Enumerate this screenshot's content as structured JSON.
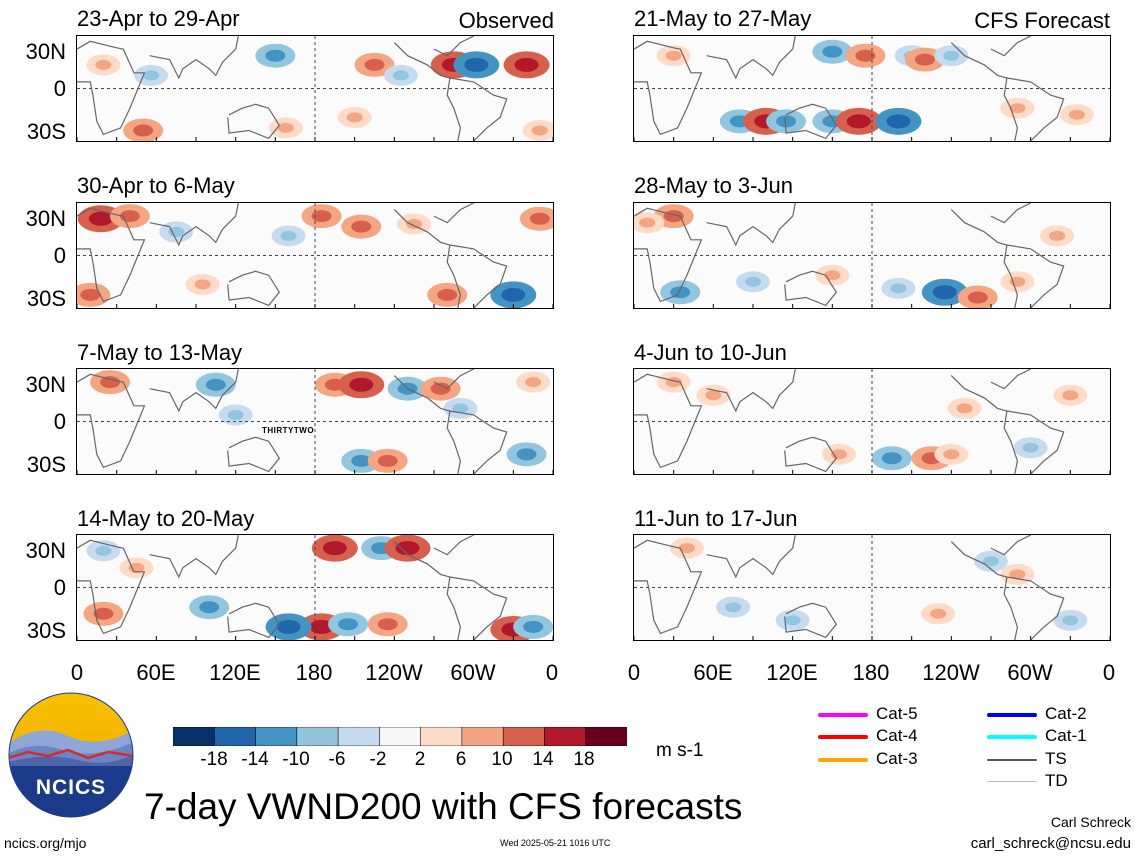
{
  "figure": {
    "title": "7-day VWND200 with CFS forecasts",
    "units": "m s-1",
    "author": "Carl Schreck",
    "email": "carl_schreck@ncsu.edu",
    "url": "ncics.org/mjo",
    "timestamp": "Wed 2025-05-21 1016 UTC",
    "logo_text": "NCICS"
  },
  "columns": {
    "observed_label": "Observed",
    "forecast_label": "CFS Forecast"
  },
  "axes": {
    "y_ticks": [
      "30N",
      "0",
      "30S"
    ],
    "x_ticks": [
      "0",
      "60E",
      "120E",
      "180",
      "120W",
      "60W",
      "0"
    ]
  },
  "storm_label": "THIRTYTWO",
  "colorbar": {
    "ticks": [
      "-18",
      "-14",
      "-10",
      "-6",
      "-2",
      "2",
      "6",
      "10",
      "14",
      "18"
    ],
    "colors": [
      "#08306b",
      "#2166ac",
      "#4393c3",
      "#92c5de",
      "#c6dbef",
      "#f7f7f7",
      "#fddbc7",
      "#f4a582",
      "#d6604d",
      "#b2182b",
      "#67001f"
    ]
  },
  "legend": [
    {
      "label": "Cat-5",
      "color": "#ff00ff"
    },
    {
      "label": "Cat-4",
      "color": "#ff0000"
    },
    {
      "label": "Cat-3",
      "color": "#ffa500"
    },
    {
      "label": "Cat-2",
      "color": "#0000ff"
    },
    {
      "label": "Cat-1",
      "color": "#00ffff"
    },
    {
      "label": "TS",
      "color": "#555555"
    },
    {
      "label": "TD",
      "color": "#bbbbbb"
    }
  ],
  "chart_data": [
    {
      "type": "heatmap",
      "title": "23-Apr to 29-Apr",
      "xlim": [
        0,
        360
      ],
      "ylim": [
        -40,
        40
      ],
      "blobs": [
        [
          20,
          18,
          1
        ],
        [
          56,
          10,
          -1
        ],
        [
          150,
          25,
          -2
        ],
        [
          158,
          -30,
          1
        ],
        [
          225,
          18,
          2
        ],
        [
          285,
          18,
          3
        ],
        [
          302,
          18,
          -3
        ],
        [
          340,
          18,
          3
        ],
        [
          50,
          -32,
          2
        ],
        [
          210,
          -22,
          1
        ],
        [
          245,
          10,
          -1
        ],
        [
          350,
          -32,
          1
        ]
      ]
    },
    {
      "type": "heatmap",
      "title": "30-Apr to 6-May",
      "xlim": [
        0,
        360
      ],
      "ylim": [
        -40,
        40
      ],
      "blobs": [
        [
          18,
          28,
          3
        ],
        [
          40,
          30,
          2
        ],
        [
          75,
          18,
          -1
        ],
        [
          160,
          15,
          -1
        ],
        [
          185,
          30,
          2
        ],
        [
          215,
          22,
          2
        ],
        [
          255,
          24,
          1
        ],
        [
          280,
          -30,
          2
        ],
        [
          330,
          -30,
          -3
        ],
        [
          350,
          28,
          2
        ],
        [
          10,
          -30,
          2
        ],
        [
          95,
          -22,
          1
        ]
      ]
    },
    {
      "type": "heatmap",
      "title": "7-May to 13-May",
      "xlim": [
        0,
        360
      ],
      "ylim": [
        -40,
        40
      ],
      "blobs": [
        [
          25,
          30,
          2
        ],
        [
          105,
          28,
          -2
        ],
        [
          195,
          28,
          2
        ],
        [
          215,
          28,
          3
        ],
        [
          250,
          25,
          -2
        ],
        [
          275,
          25,
          2
        ],
        [
          215,
          -30,
          -2
        ],
        [
          235,
          -30,
          2
        ],
        [
          340,
          -25,
          -2
        ],
        [
          345,
          30,
          1
        ],
        [
          120,
          5,
          -1
        ],
        [
          290,
          10,
          -1
        ]
      ]
    },
    {
      "type": "heatmap",
      "title": "14-May to 20-May",
      "xlim": [
        0,
        360
      ],
      "ylim": [
        -40,
        40
      ],
      "blobs": [
        [
          20,
          28,
          -1
        ],
        [
          195,
          30,
          3
        ],
        [
          230,
          30,
          -2
        ],
        [
          250,
          30,
          3
        ],
        [
          185,
          -30,
          3
        ],
        [
          160,
          -30,
          -3
        ],
        [
          205,
          -28,
          -2
        ],
        [
          235,
          -28,
          2
        ],
        [
          330,
          -32,
          3
        ],
        [
          345,
          -30,
          -2
        ],
        [
          20,
          -20,
          2
        ],
        [
          100,
          -15,
          -2
        ],
        [
          45,
          15,
          1
        ]
      ]
    },
    {
      "type": "heatmap",
      "title": "21-May to 27-May",
      "xlim": [
        0,
        360
      ],
      "ylim": [
        -40,
        40
      ],
      "blobs": [
        [
          30,
          25,
          1
        ],
        [
          150,
          28,
          -2
        ],
        [
          175,
          25,
          2
        ],
        [
          210,
          25,
          -1
        ],
        [
          220,
          22,
          2
        ],
        [
          240,
          25,
          -1
        ],
        [
          80,
          -25,
          -2
        ],
        [
          100,
          -25,
          3
        ],
        [
          115,
          -25,
          -2
        ],
        [
          150,
          -25,
          -2
        ],
        [
          170,
          -25,
          3
        ],
        [
          200,
          -25,
          -3
        ],
        [
          290,
          -15,
          1
        ],
        [
          335,
          -20,
          1
        ]
      ]
    },
    {
      "type": "heatmap",
      "title": "28-May to 3-Jun",
      "xlim": [
        0,
        360
      ],
      "ylim": [
        -40,
        40
      ],
      "blobs": [
        [
          30,
          30,
          2
        ],
        [
          10,
          25,
          1
        ],
        [
          35,
          -28,
          -2
        ],
        [
          90,
          -20,
          -1
        ],
        [
          150,
          -15,
          1
        ],
        [
          235,
          -28,
          -3
        ],
        [
          260,
          -32,
          2
        ],
        [
          290,
          -20,
          1
        ],
        [
          200,
          -25,
          -1
        ],
        [
          320,
          15,
          1
        ]
      ]
    },
    {
      "type": "heatmap",
      "title": "4-Jun to 10-Jun",
      "xlim": [
        0,
        360
      ],
      "ylim": [
        -40,
        40
      ],
      "blobs": [
        [
          30,
          30,
          1
        ],
        [
          155,
          -25,
          1
        ],
        [
          195,
          -28,
          -2
        ],
        [
          225,
          -28,
          2
        ],
        [
          240,
          -25,
          1
        ],
        [
          250,
          10,
          1
        ],
        [
          300,
          -20,
          -1
        ],
        [
          330,
          20,
          1
        ],
        [
          60,
          20,
          1
        ]
      ]
    },
    {
      "type": "heatmap",
      "title": "11-Jun to 17-Jun",
      "xlim": [
        0,
        360
      ],
      "ylim": [
        -40,
        40
      ],
      "blobs": [
        [
          75,
          -15,
          -1
        ],
        [
          120,
          -25,
          -1
        ],
        [
          230,
          -20,
          1
        ],
        [
          270,
          20,
          -1
        ],
        [
          290,
          10,
          1
        ],
        [
          40,
          30,
          1
        ],
        [
          330,
          -25,
          -1
        ]
      ]
    }
  ]
}
